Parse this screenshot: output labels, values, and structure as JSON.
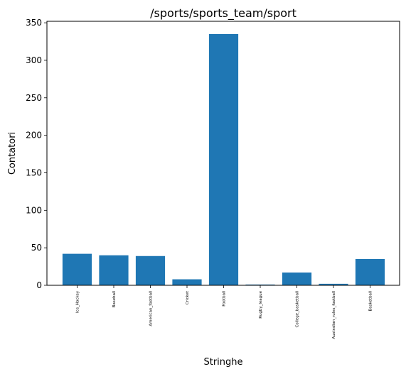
{
  "chart_data": {
    "type": "bar",
    "title": "/sports/sports_team/sport",
    "xlabel": "Stringhe",
    "ylabel": "Contatori",
    "categories": [
      "Ice_Hockey",
      "Baseball",
      "American_football",
      "Cricket",
      "Football",
      "Rugby_league",
      "College_basketball",
      "Australian_rules_football",
      "Basketball"
    ],
    "values": [
      42,
      40,
      39,
      8,
      335,
      1,
      17,
      2,
      35
    ],
    "ylim": [
      0,
      352
    ],
    "yticks": [
      0,
      50,
      100,
      150,
      200,
      250,
      300,
      350
    ],
    "grid": false,
    "bar_color": "#1f77b4"
  }
}
